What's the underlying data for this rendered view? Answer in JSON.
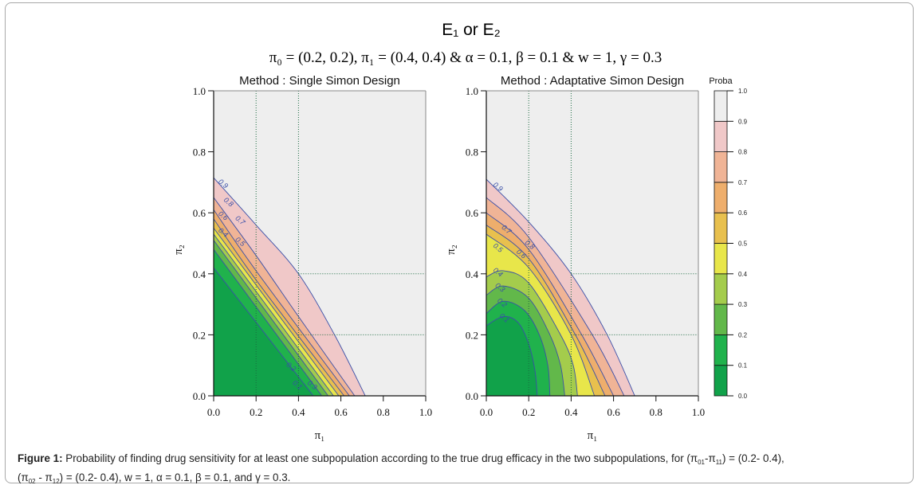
{
  "figure": {
    "title": "E₁ or E₂",
    "subtitle": "π₀ = (0.2, 0.2), π₁ = (0.4, 0.4) & α = 0.1, β = 0.1 & w = 1, γ = 0.3",
    "caption": {
      "label": "Figure 1:",
      "text_1": " Probability of finding drug sensitivity for at least one subpopulation according to the true drug efficacy in the two subpopulations, for (π",
      "sub_1": "01",
      "text_2": "-π",
      "sub_2": "11",
      "text_3": ") = (0.2- 0.4),",
      "text_4": "(π",
      "sub_3": "02",
      "text_5": " - π",
      "sub_4": "12",
      "text_6": ") = (0.2- 0.4), w = 1, α = 0.1, β = 0.1, and γ = 0.3."
    }
  },
  "chart_data": [
    {
      "type": "heatmap",
      "subtype": "filled-contour",
      "title": "Method : Single Simon Design",
      "xlabel": "π₁",
      "ylabel": "π₂",
      "xlim": [
        0,
        1
      ],
      "ylim": [
        0,
        1
      ],
      "x_ticks": [
        "0.0",
        "0.2",
        "0.4",
        "0.6",
        "0.8",
        "1.0"
      ],
      "y_ticks": [
        "0.0",
        "0.2",
        "0.4",
        "0.6",
        "0.8",
        "1.0"
      ],
      "reference_lines": {
        "x": [
          0.2,
          0.4
        ],
        "y": [
          0.2,
          0.4
        ]
      },
      "contours": [
        {
          "level": 0.1,
          "path": [
            [
              0,
              0.42
            ],
            [
              0.47,
              0
            ]
          ]
        },
        {
          "level": 0.2,
          "path": [
            [
              0,
              0.48
            ],
            [
              0.51,
              0
            ]
          ]
        },
        {
          "level": 0.3,
          "path": [
            [
              0,
              0.51
            ],
            [
              0.54,
              0
            ]
          ]
        },
        {
          "level": 0.4,
          "path": [
            [
              0,
              0.53
            ],
            [
              0.565,
              0
            ]
          ]
        },
        {
          "level": 0.5,
          "path": [
            [
              0,
              0.55
            ],
            [
              0.59,
              0
            ]
          ]
        },
        {
          "level": 0.6,
          "path": [
            [
              0,
              0.58
            ],
            [
              0.2,
              0.38
            ],
            [
              0.615,
              0
            ]
          ]
        },
        {
          "level": 0.7,
          "path": [
            [
              0,
              0.61
            ],
            [
              0.2,
              0.41
            ],
            [
              0.64,
              0
            ]
          ]
        },
        {
          "level": 0.8,
          "path": [
            [
              0,
              0.65
            ],
            [
              0.2,
              0.46
            ],
            [
              0.4,
              0.26
            ],
            [
              0.665,
              0
            ]
          ]
        },
        {
          "level": 0.9,
          "path": [
            [
              0,
              0.715
            ],
            [
              0.2,
              0.56
            ],
            [
              0.4,
              0.4
            ],
            [
              0.57,
              0.2
            ],
            [
              0.715,
              0
            ]
          ]
        }
      ],
      "contour_labels": [
        {
          "text": "0.9",
          "at": [
            0.02,
            0.7
          ]
        },
        {
          "text": "0.8",
          "at": [
            0.045,
            0.64
          ]
        },
        {
          "text": "0.7",
          "at": [
            0.1,
            0.58
          ]
        },
        {
          "text": "0.6",
          "at": [
            0.02,
            0.595
          ]
        },
        {
          "text": "0.5",
          "at": [
            0.1,
            0.51
          ]
        },
        {
          "text": "0.4",
          "at": [
            0.02,
            0.54
          ]
        },
        {
          "text": "0.3",
          "at": [
            0.44,
            0.04
          ]
        },
        {
          "text": "0.2",
          "at": [
            0.34,
            0.1
          ]
        },
        {
          "text": "0.1",
          "at": [
            0.37,
            0.04
          ]
        }
      ]
    },
    {
      "type": "heatmap",
      "subtype": "filled-contour",
      "title": "Method : Adaptative Simon Design",
      "xlabel": "π₁",
      "ylabel": "π₂",
      "xlim": [
        0,
        1
      ],
      "ylim": [
        0,
        1
      ],
      "x_ticks": [
        "0.0",
        "0.2",
        "0.4",
        "0.6",
        "0.8",
        "1.0"
      ],
      "y_ticks": [
        "0.0",
        "0.2",
        "0.4",
        "0.6",
        "0.8",
        "1.0"
      ],
      "reference_lines": {
        "x": [
          0.2,
          0.4
        ],
        "y": [
          0.2,
          0.4
        ]
      },
      "contours": [
        {
          "level": 0.1,
          "path": [
            [
              0,
              0.23
            ],
            [
              0.08,
              0.26
            ],
            [
              0.15,
              0.24
            ],
            [
              0.2,
              0.17
            ],
            [
              0.23,
              0.08
            ],
            [
              0.24,
              0
            ]
          ]
        },
        {
          "level": 0.2,
          "path": [
            [
              0,
              0.27
            ],
            [
              0.08,
              0.31
            ],
            [
              0.18,
              0.28
            ],
            [
              0.25,
              0.2
            ],
            [
              0.29,
              0.1
            ],
            [
              0.3,
              0
            ]
          ]
        },
        {
          "level": 0.3,
          "path": [
            [
              0,
              0.33
            ],
            [
              0.08,
              0.36
            ],
            [
              0.2,
              0.32
            ],
            [
              0.3,
              0.2
            ],
            [
              0.35,
              0.1
            ],
            [
              0.37,
              0
            ]
          ]
        },
        {
          "level": 0.4,
          "path": [
            [
              0,
              0.39
            ],
            [
              0.08,
              0.41
            ],
            [
              0.2,
              0.37
            ],
            [
              0.35,
              0.2
            ],
            [
              0.41,
              0.1
            ],
            [
              0.43,
              0
            ]
          ]
        },
        {
          "level": 0.5,
          "path": [
            [
              0,
              0.53
            ],
            [
              0.2,
              0.42
            ],
            [
              0.4,
              0.2
            ],
            [
              0.51,
              0
            ]
          ]
        },
        {
          "level": 0.6,
          "path": [
            [
              0,
              0.56
            ],
            [
              0.2,
              0.45
            ],
            [
              0.42,
              0.2
            ],
            [
              0.56,
              0
            ]
          ]
        },
        {
          "level": 0.7,
          "path": [
            [
              0,
              0.6
            ],
            [
              0.2,
              0.48
            ],
            [
              0.45,
              0.2
            ],
            [
              0.6,
              0
            ]
          ]
        },
        {
          "level": 0.8,
          "path": [
            [
              0,
              0.65
            ],
            [
              0.2,
              0.52
            ],
            [
              0.5,
              0.2
            ],
            [
              0.65,
              0
            ]
          ]
        },
        {
          "level": 0.9,
          "path": [
            [
              0,
              0.71
            ],
            [
              0.2,
              0.57
            ],
            [
              0.4,
              0.4
            ],
            [
              0.57,
              0.2
            ],
            [
              0.7,
              0
            ]
          ]
        }
      ],
      "contour_labels": [
        {
          "text": "0.9",
          "at": [
            0.03,
            0.69
          ]
        },
        {
          "text": "0.8",
          "at": [
            0.18,
            0.5
          ]
        },
        {
          "text": "0.7",
          "at": [
            0.07,
            0.55
          ]
        },
        {
          "text": "0.6",
          "at": [
            0.14,
            0.47
          ]
        },
        {
          "text": "0.5",
          "at": [
            0.03,
            0.49
          ]
        },
        {
          "text": "0.4",
          "at": [
            0.03,
            0.41
          ]
        },
        {
          "text": "0.3",
          "at": [
            0.04,
            0.36
          ]
        },
        {
          "text": "0.2",
          "at": [
            0.05,
            0.31
          ]
        },
        {
          "text": "0.1",
          "at": [
            0.06,
            0.26
          ]
        }
      ]
    }
  ],
  "colorbar": {
    "title": "Proba",
    "levels": [
      0.0,
      0.1,
      0.2,
      0.3,
      0.4,
      0.5,
      0.6,
      0.7,
      0.8,
      0.9,
      1.0
    ],
    "tick_labels": [
      "0.0",
      "0.1",
      "0.2",
      "0.3",
      "0.4",
      "0.5",
      "0.6",
      "0.7",
      "0.8",
      "0.9",
      "1.0"
    ],
    "colors": [
      "#11a24a",
      "#20b24c",
      "#62b84a",
      "#a4cc4c",
      "#e8e64a",
      "#e8c04e",
      "#eeae6c",
      "#f0b496",
      "#f0c8c8",
      "#eeeeee"
    ]
  },
  "styles": {
    "contour_line_color": "#3a4fa8",
    "reference_line_color": "#1a6a40",
    "panel_background": "#eeeeee"
  }
}
